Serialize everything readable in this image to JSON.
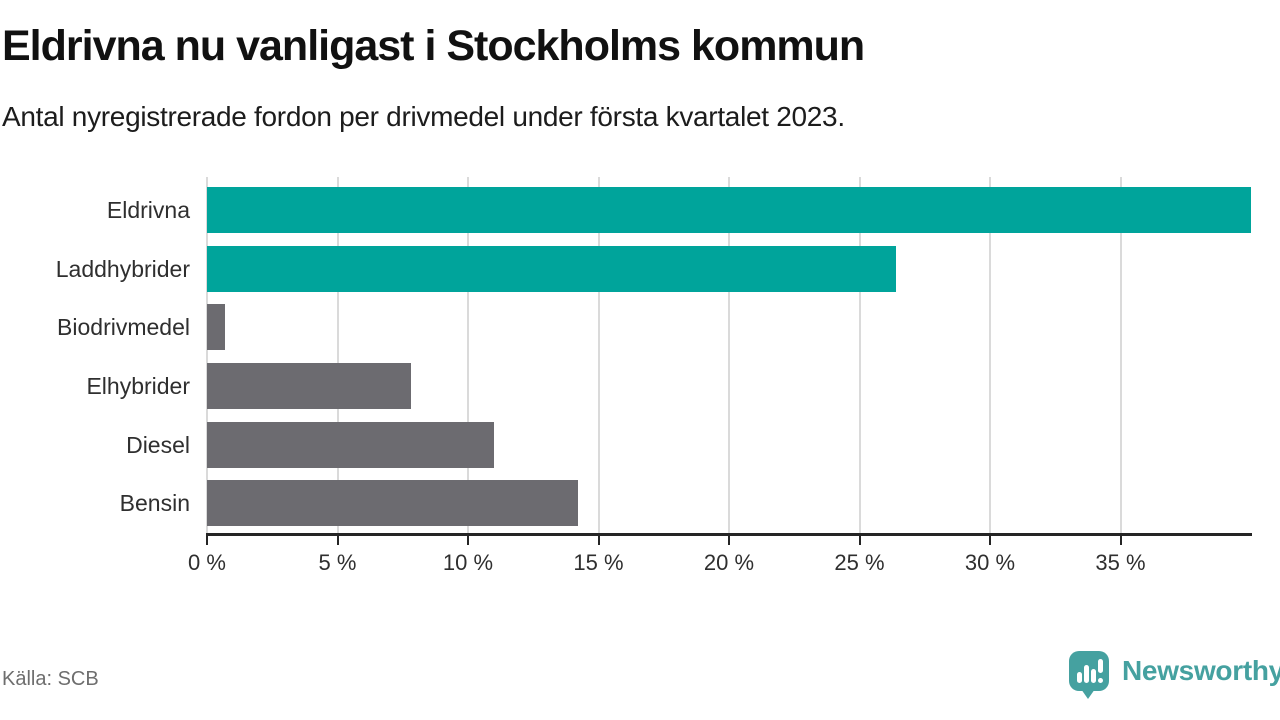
{
  "header": {
    "title": "Eldrivna nu vanligast i Stockholms kommun",
    "subtitle": "Antal nyregistrerade fordon per drivmedel under första kvartalet 2023."
  },
  "chart_data": {
    "type": "bar",
    "orientation": "horizontal",
    "title": "Eldrivna nu vanligast i Stockholms kommun",
    "subtitle": "Antal nyregistrerade fordon per drivmedel under första kvartalet 2023.",
    "categories": [
      "Eldrivna",
      "Laddhybrider",
      "Biodrivmedel",
      "Elhybrider",
      "Diesel",
      "Bensin"
    ],
    "values": [
      40.0,
      26.4,
      0.7,
      7.8,
      11.0,
      14.2
    ],
    "unit": "%",
    "bar_colors": [
      "#00a49b",
      "#00a49b",
      "#6c6b70",
      "#6c6b70",
      "#6c6b70",
      "#6c6b70"
    ],
    "xlabel": "",
    "ylabel": "",
    "xlim": [
      0,
      40
    ],
    "x_ticks": [
      0,
      5,
      10,
      15,
      20,
      25,
      30,
      35
    ],
    "x_tick_labels": [
      "0 %",
      "5 %",
      "10 %",
      "15 %",
      "20 %",
      "25 %",
      "30 %",
      "35 %"
    ],
    "grid": true,
    "legend": "none"
  },
  "footer": {
    "source": "Källa: SCB",
    "brand": "Newsworthy"
  },
  "colors": {
    "accent_teal": "#00a49b",
    "neutral_gray": "#6c6b70",
    "brand_teal": "#45a1a0",
    "gridline": "#dadada",
    "axis": "#252525",
    "title_text": "#111111",
    "body_text": "#2f2f2f",
    "muted_text": "#6e6e6e"
  },
  "icons": {
    "brand_icon": "newsworthy-speech-bubble-bar-chart-icon"
  }
}
